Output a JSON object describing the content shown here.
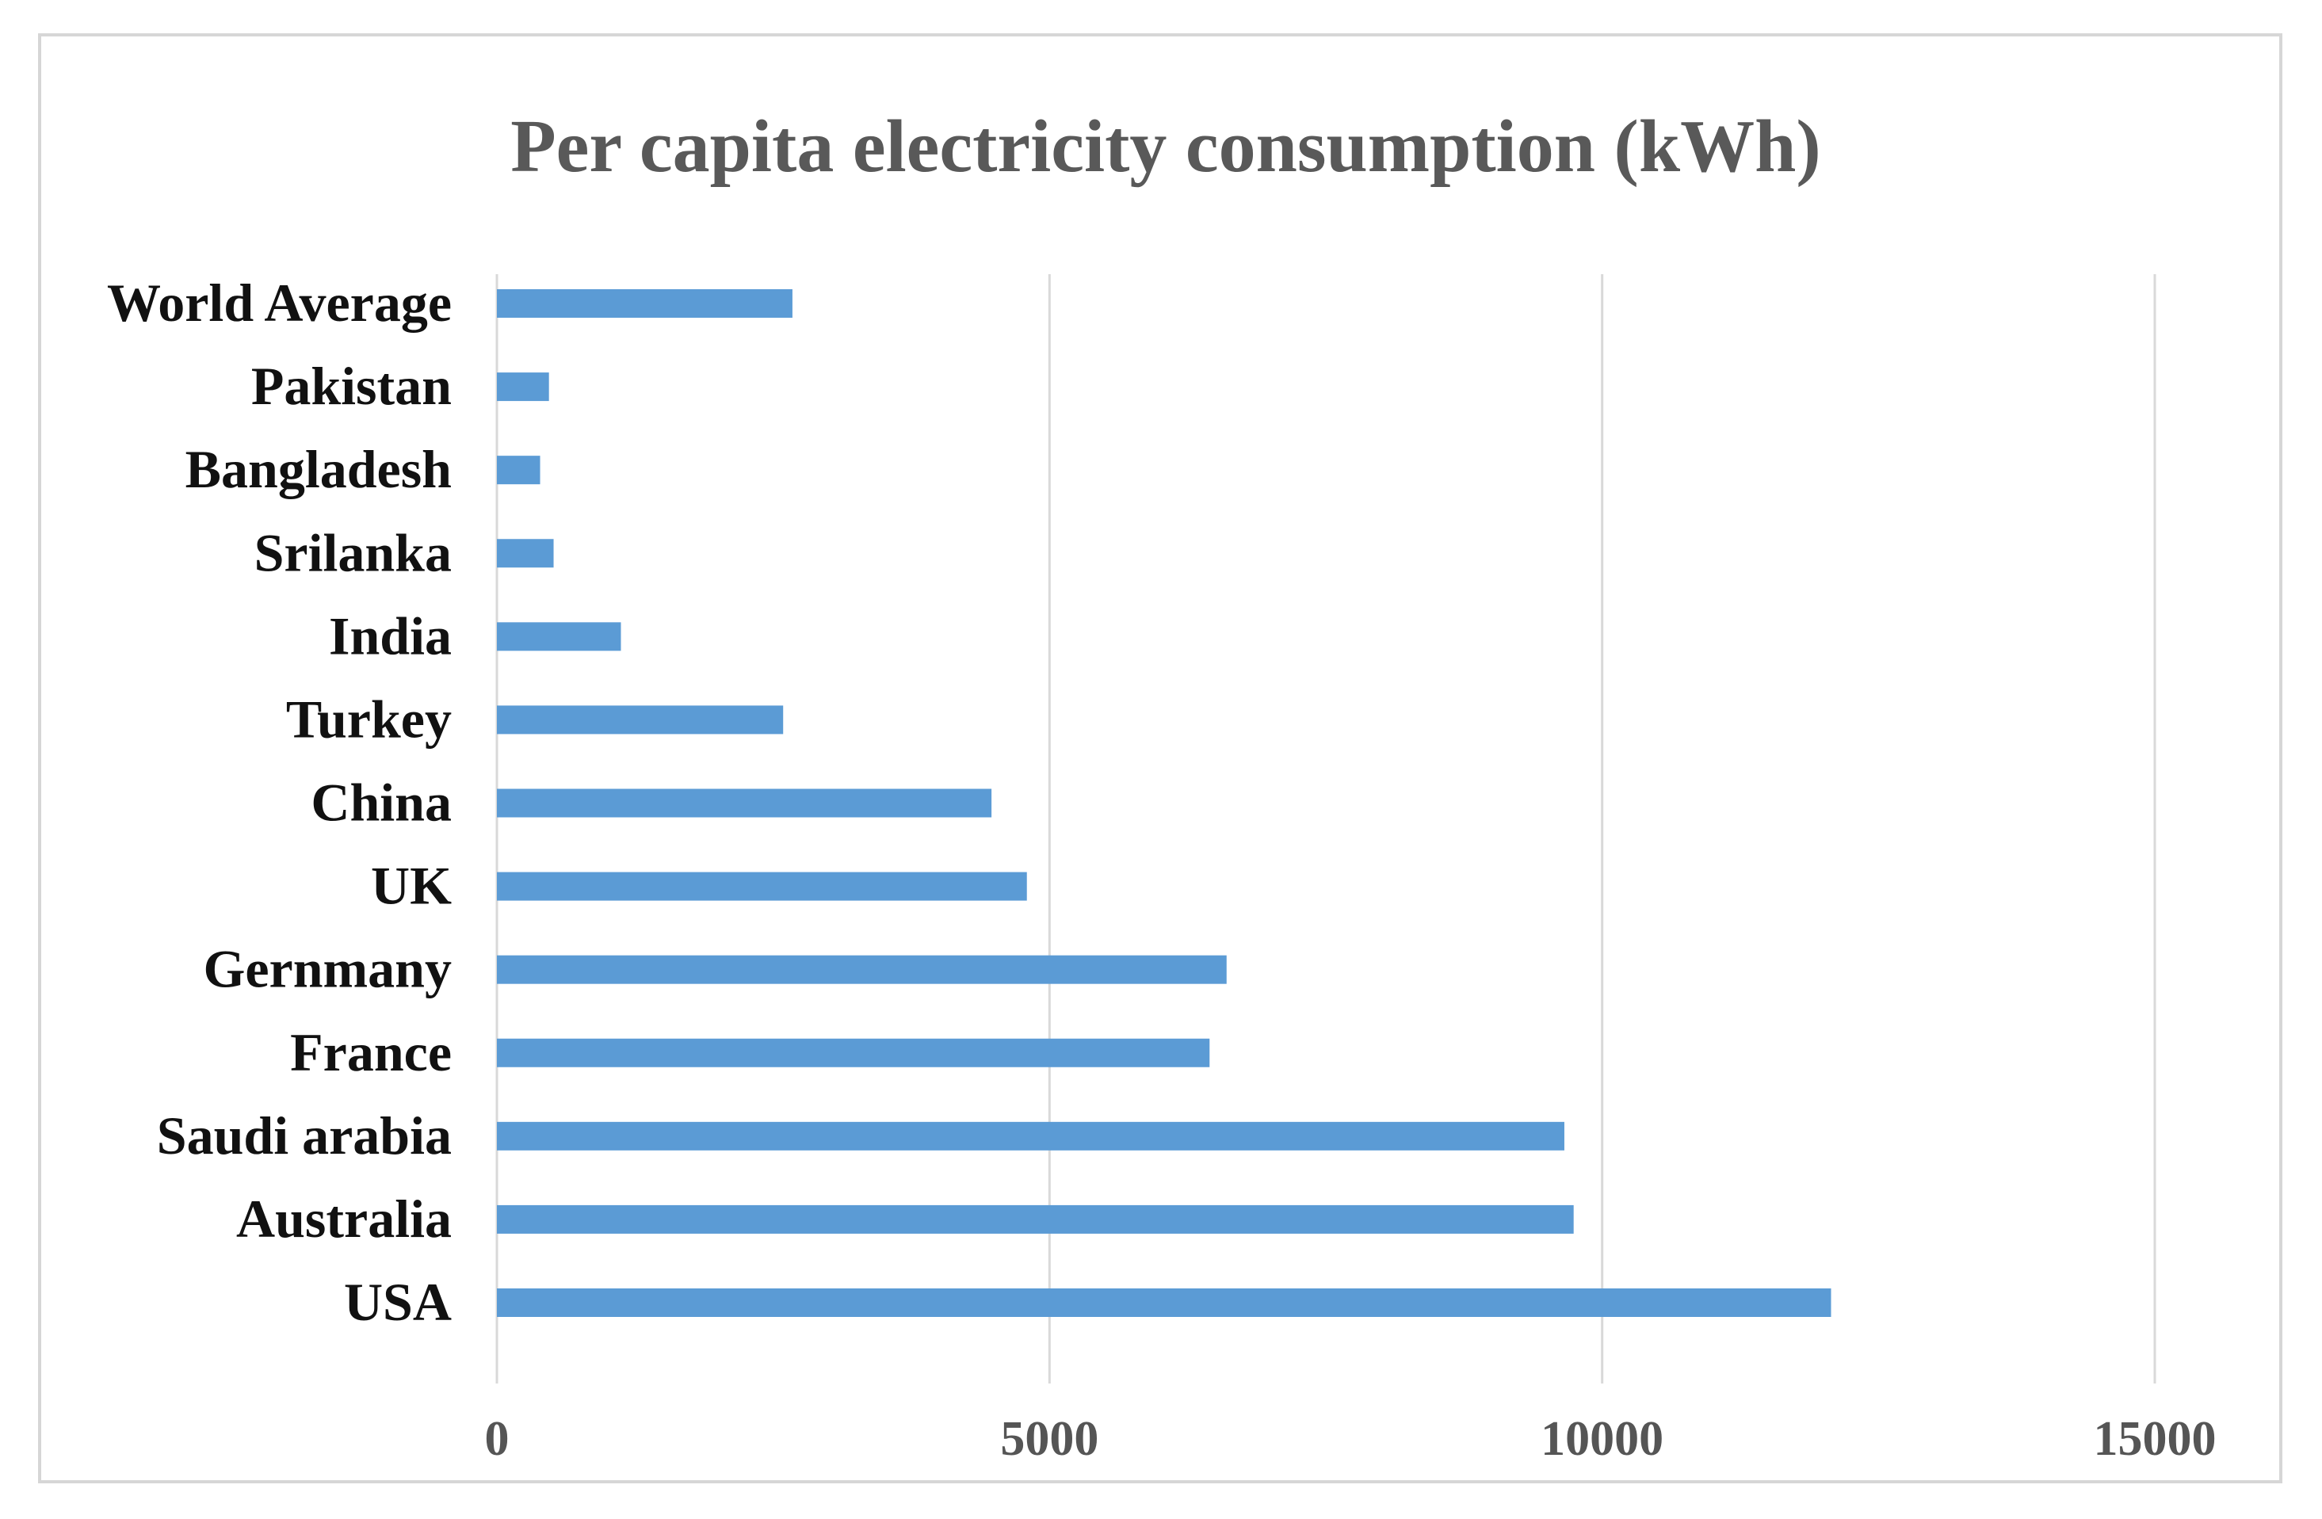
{
  "chart_data": {
    "type": "bar",
    "orientation": "horizontal",
    "title": "Per capita electricity consumption (kWh)",
    "xlabel": "",
    "ylabel": "",
    "xlim": [
      0,
      15000
    ],
    "xticks": [
      "0",
      "5000",
      "10000",
      "15000"
    ],
    "grid": true,
    "bar_color": "#5b9bd5",
    "categories": [
      "USA",
      "Australia",
      "Saudi arabia",
      "France",
      "Gernmany",
      "UK",
      "China",
      "Turkey",
      "India",
      "Srilanka",
      "Bangladesh",
      "Pakistan",
      "World Average"
    ],
    "values": [
      12071,
      9742,
      9658,
      6448,
      6602,
      4795,
      4475,
      2590,
      1122,
      513,
      391,
      471,
      2674
    ]
  }
}
